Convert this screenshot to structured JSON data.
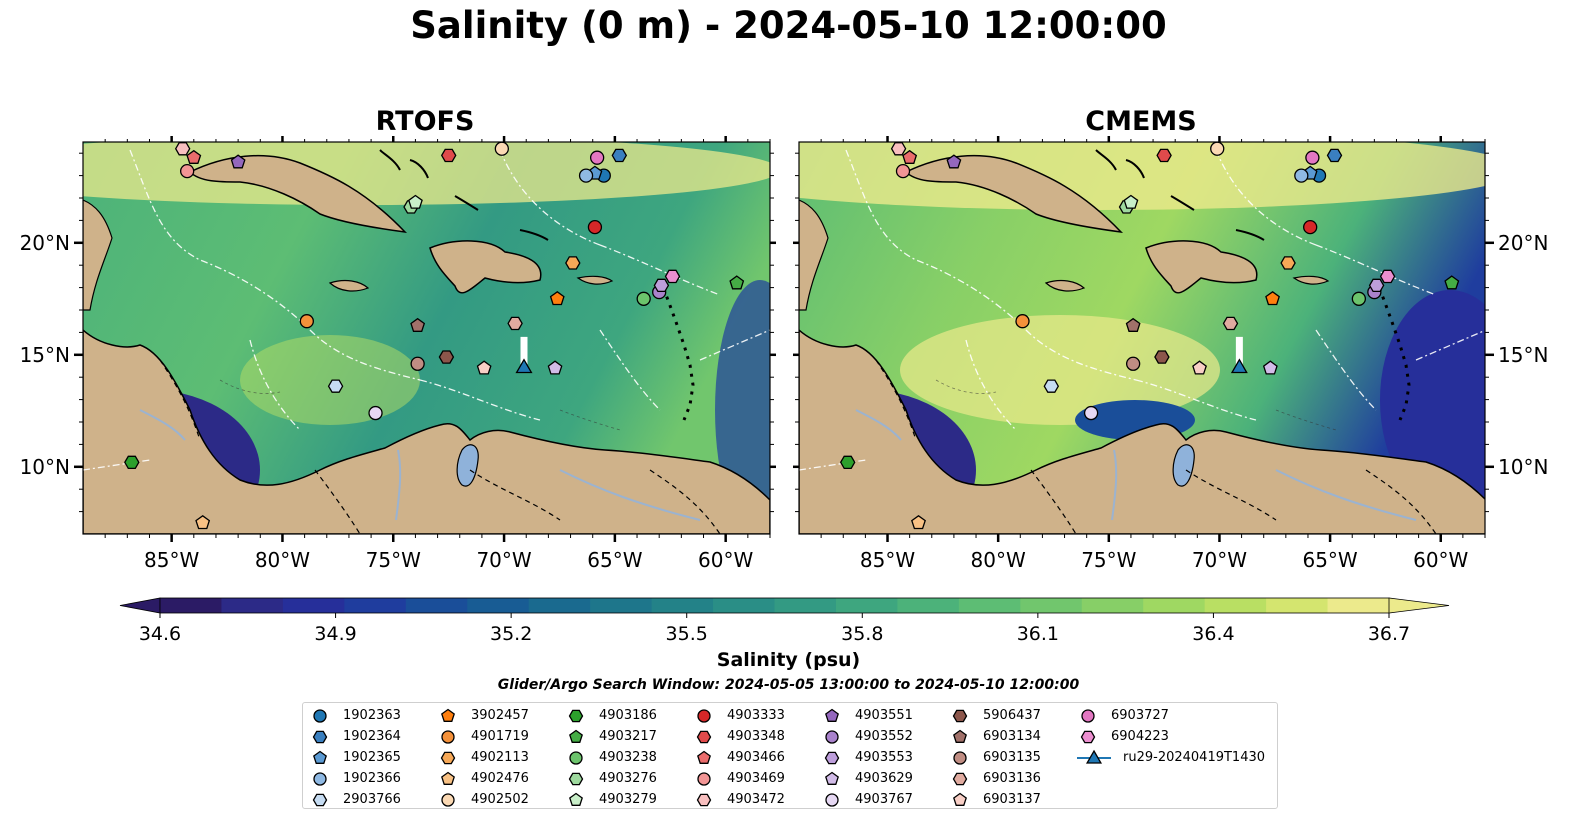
{
  "title": "Salinity (0 m) - 2024-05-10 12:00:00",
  "panels": [
    {
      "title": "RTOFS"
    },
    {
      "title": "CMEMS"
    }
  ],
  "lon_ticks": [
    "85°W",
    "80°W",
    "75°W",
    "70°W",
    "65°W",
    "60°W"
  ],
  "lat_ticks": [
    "20°N",
    "15°N",
    "10°N"
  ],
  "colorbar": {
    "label": "Salinity (psu)",
    "ticks": [
      "34.6",
      "34.9",
      "35.2",
      "35.5",
      "35.8",
      "36.1",
      "36.4",
      "36.7"
    ],
    "colors": [
      "#2b1b65",
      "#2c2a87",
      "#262f9a",
      "#1f3d9e",
      "#1a4e99",
      "#185c94",
      "#1a6a8f",
      "#1e768b",
      "#238288",
      "#2a8e86",
      "#339a83",
      "#3ea67f",
      "#4cb27a",
      "#5dbd74",
      "#71c66d",
      "#87cf67",
      "#9fd862",
      "#b9df63",
      "#d4e56f",
      "#ecea8c"
    ],
    "extend": "both"
  },
  "search_window": "Glider/Argo Search Window: 2024-05-05 13:00:00 to 2024-05-10 12:00:00",
  "land_color": "#cfb28a",
  "legend": [
    {
      "label": "1902363",
      "marker": "circle",
      "color": "#1f77b4"
    },
    {
      "label": "1902364",
      "marker": "hexagon",
      "color": "#3a7fbf"
    },
    {
      "label": "1902365",
      "marker": "pentagon",
      "color": "#5b9ad3"
    },
    {
      "label": "1902366",
      "marker": "circle",
      "color": "#8fb9e3"
    },
    {
      "label": "2903766",
      "marker": "hexagon",
      "color": "#c6dcf2"
    },
    {
      "label": "3902457",
      "marker": "pentagon",
      "color": "#ff7f0e"
    },
    {
      "label": "4901719",
      "marker": "circle",
      "color": "#f4913a"
    },
    {
      "label": "4902113",
      "marker": "hexagon",
      "color": "#f6a857"
    },
    {
      "label": "4902476",
      "marker": "pentagon",
      "color": "#f8c184"
    },
    {
      "label": "4902502",
      "marker": "circle",
      "color": "#fbd9b4"
    },
    {
      "label": "4903186",
      "marker": "hexagon",
      "color": "#2ca02c"
    },
    {
      "label": "4903217",
      "marker": "pentagon",
      "color": "#45ad45"
    },
    {
      "label": "4903238",
      "marker": "circle",
      "color": "#6cc46c"
    },
    {
      "label": "4903276",
      "marker": "hexagon",
      "color": "#9ed99e"
    },
    {
      "label": "4903279",
      "marker": "pentagon",
      "color": "#c9efc9"
    },
    {
      "label": "4903333",
      "marker": "circle",
      "color": "#d62728"
    },
    {
      "label": "4903348",
      "marker": "hexagon",
      "color": "#e04a4b"
    },
    {
      "label": "4903466",
      "marker": "pentagon",
      "color": "#ea6c6c"
    },
    {
      "label": "4903469",
      "marker": "circle",
      "color": "#f29595"
    },
    {
      "label": "4903472",
      "marker": "hexagon",
      "color": "#f8bfbf"
    },
    {
      "label": "4903551",
      "marker": "pentagon",
      "color": "#9467bd"
    },
    {
      "label": "4903552",
      "marker": "circle",
      "color": "#a982cc"
    },
    {
      "label": "4903553",
      "marker": "hexagon",
      "color": "#bd9edb"
    },
    {
      "label": "4903629",
      "marker": "pentagon",
      "color": "#d2bce8"
    },
    {
      "label": "4903767",
      "marker": "circle",
      "color": "#e6d8f3"
    },
    {
      "label": "5906437",
      "marker": "hexagon",
      "color": "#8c564b"
    },
    {
      "label": "6903134",
      "marker": "pentagon",
      "color": "#a1716a"
    },
    {
      "label": "6903135",
      "marker": "circle",
      "color": "#c08d83"
    },
    {
      "label": "6903136",
      "marker": "hexagon",
      "color": "#e0aba0"
    },
    {
      "label": "6903137",
      "marker": "pentagon",
      "color": "#f8cfc6"
    },
    {
      "label": "6903727",
      "marker": "circle",
      "color": "#e377c2"
    },
    {
      "label": "6904223",
      "marker": "hexagon",
      "color": "#ec8fd0"
    },
    {
      "label": "ru29-20240419T1430",
      "marker": "triangle",
      "color": "#1f77b4",
      "line": true
    }
  ],
  "chart_data": {
    "type": "map",
    "projection": "PlateCarree",
    "extent": {
      "lon": [
        -89,
        -58
      ],
      "lat": [
        7,
        24.5
      ]
    },
    "panels": [
      "RTOFS",
      "CMEMS"
    ],
    "floats": [
      {
        "id": "1902363",
        "lon": -65.5,
        "lat": 23.0
      },
      {
        "id": "1902364",
        "lon": -64.8,
        "lat": 23.9
      },
      {
        "id": "1902365",
        "lon": -65.9,
        "lat": 23.1
      },
      {
        "id": "1902366",
        "lon": -66.3,
        "lat": 23.0
      },
      {
        "id": "2903766",
        "lon": -77.6,
        "lat": 13.6
      },
      {
        "id": "3902457",
        "lon": -67.6,
        "lat": 17.5
      },
      {
        "id": "4901719",
        "lon": -78.9,
        "lat": 16.5
      },
      {
        "id": "4902113",
        "lon": -66.9,
        "lat": 19.1
      },
      {
        "id": "4902476",
        "lon": -83.6,
        "lat": 7.5
      },
      {
        "id": "4902502",
        "lon": -70.1,
        "lat": 24.2
      },
      {
        "id": "4903186",
        "lon": -86.8,
        "lat": 10.2
      },
      {
        "id": "4903217",
        "lon": -59.5,
        "lat": 18.2
      },
      {
        "id": "4903238",
        "lon": -63.7,
        "lat": 17.5
      },
      {
        "id": "4903276",
        "lon": -74.2,
        "lat": 21.6
      },
      {
        "id": "4903279",
        "lon": -74.0,
        "lat": 21.8
      },
      {
        "id": "4903333",
        "lon": -65.9,
        "lat": 20.7
      },
      {
        "id": "4903348",
        "lon": -72.5,
        "lat": 23.9
      },
      {
        "id": "4903466",
        "lon": -84.0,
        "lat": 23.8
      },
      {
        "id": "4903469",
        "lon": -84.3,
        "lat": 23.2
      },
      {
        "id": "4903472",
        "lon": -84.5,
        "lat": 24.2
      },
      {
        "id": "4903551",
        "lon": -82.0,
        "lat": 23.6
      },
      {
        "id": "4903552",
        "lon": -63.0,
        "lat": 17.8
      },
      {
        "id": "4903553",
        "lon": -62.9,
        "lat": 18.1
      },
      {
        "id": "4903629",
        "lon": -67.7,
        "lat": 14.4
      },
      {
        "id": "4903767",
        "lon": -75.8,
        "lat": 12.4
      },
      {
        "id": "5906437",
        "lon": -72.6,
        "lat": 14.9
      },
      {
        "id": "6903134",
        "lon": -73.9,
        "lat": 16.3
      },
      {
        "id": "6903135",
        "lon": -73.9,
        "lat": 14.6
      },
      {
        "id": "6903136",
        "lon": -69.5,
        "lat": 16.4
      },
      {
        "id": "6903137",
        "lon": -70.9,
        "lat": 14.4
      },
      {
        "id": "6903727",
        "lon": -65.8,
        "lat": 23.8
      },
      {
        "id": "6904223",
        "lon": -62.4,
        "lat": 18.5
      },
      {
        "id": "ru29-20240419T1430",
        "lon": -69.1,
        "lat": 14.4,
        "track_lat": [
          14.4,
          15.8
        ]
      }
    ]
  }
}
